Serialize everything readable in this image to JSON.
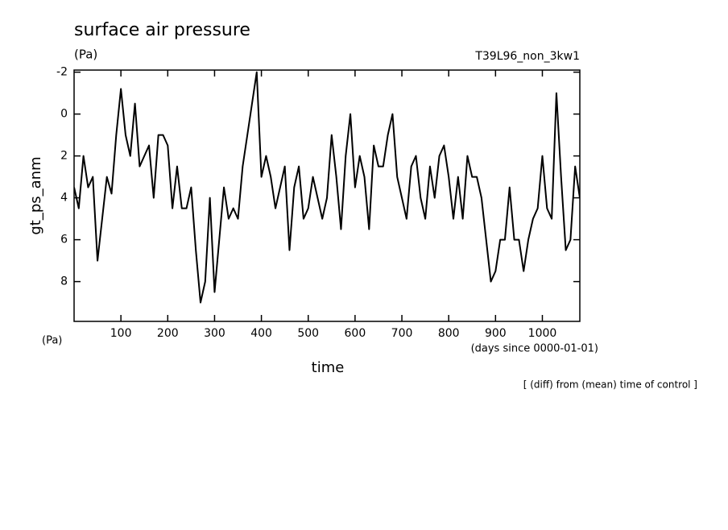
{
  "chart_data": {
    "type": "line",
    "title": "surface air pressure",
    "units_top": "(Pa)",
    "run_label": "T39L96_non_3kw1",
    "ylabel": "gt_ps_anm",
    "units_bottom": "(Pa)",
    "xlabel": "time",
    "xunits": "(days since 0000-01-01)",
    "note": "[ (diff) from (mean) time of control ]",
    "xlim": [
      0,
      1080
    ],
    "ylim": [
      9.9,
      -2.1
    ],
    "xticks": [
      100,
      200,
      300,
      400,
      500,
      600,
      700,
      800,
      900,
      1000
    ],
    "yticks": [
      -2,
      0,
      2,
      4,
      6,
      8
    ],
    "series": [
      {
        "color": "#000000",
        "x": [
          0,
          10,
          20,
          30,
          40,
          50,
          60,
          70,
          80,
          90,
          100,
          110,
          120,
          130,
          140,
          150,
          160,
          170,
          180,
          190,
          200,
          210,
          220,
          230,
          240,
          250,
          260,
          270,
          280,
          290,
          300,
          310,
          320,
          330,
          340,
          350,
          360,
          370,
          380,
          390,
          400,
          410,
          420,
          430,
          440,
          450,
          460,
          470,
          480,
          490,
          500,
          510,
          520,
          530,
          540,
          550,
          560,
          570,
          580,
          590,
          600,
          610,
          620,
          630,
          640,
          650,
          660,
          670,
          680,
          690,
          700,
          710,
          720,
          730,
          740,
          750,
          760,
          770,
          780,
          790,
          800,
          810,
          820,
          830,
          840,
          850,
          860,
          870,
          880,
          890,
          900,
          910,
          920,
          930,
          940,
          950,
          960,
          970,
          980,
          990,
          1000,
          1010,
          1020,
          1030,
          1040,
          1050,
          1060,
          1070,
          1080
        ],
        "values": [
          3.5,
          4.5,
          2,
          3.5,
          3,
          7,
          5,
          3,
          3.8,
          1,
          -1.2,
          1,
          2,
          -0.5,
          2.5,
          2,
          1.5,
          4,
          1,
          1,
          1.5,
          4.5,
          2.5,
          4.5,
          4.5,
          3.5,
          6.5,
          9,
          8,
          4,
          8.5,
          6,
          3.5,
          5,
          4.5,
          5,
          2.5,
          1,
          -0.5,
          -2,
          3,
          2,
          3,
          4.5,
          3.5,
          2.5,
          6.5,
          3.5,
          2.5,
          5,
          4.5,
          3,
          4,
          5,
          4,
          1,
          3,
          5.5,
          2,
          0,
          3.5,
          2,
          3,
          5.5,
          1.5,
          2.5,
          2.5,
          1,
          0,
          3,
          4,
          5,
          2.5,
          2,
          4,
          5,
          2.5,
          4,
          2,
          1.5,
          3,
          5,
          3,
          5,
          2,
          3,
          3,
          4,
          6,
          8,
          7.5,
          6,
          6,
          3.5,
          6,
          6,
          7.5,
          6,
          5,
          4.5,
          2,
          4.5,
          5,
          -1,
          3,
          6.5,
          6,
          2.5,
          4
        ]
      }
    ]
  }
}
